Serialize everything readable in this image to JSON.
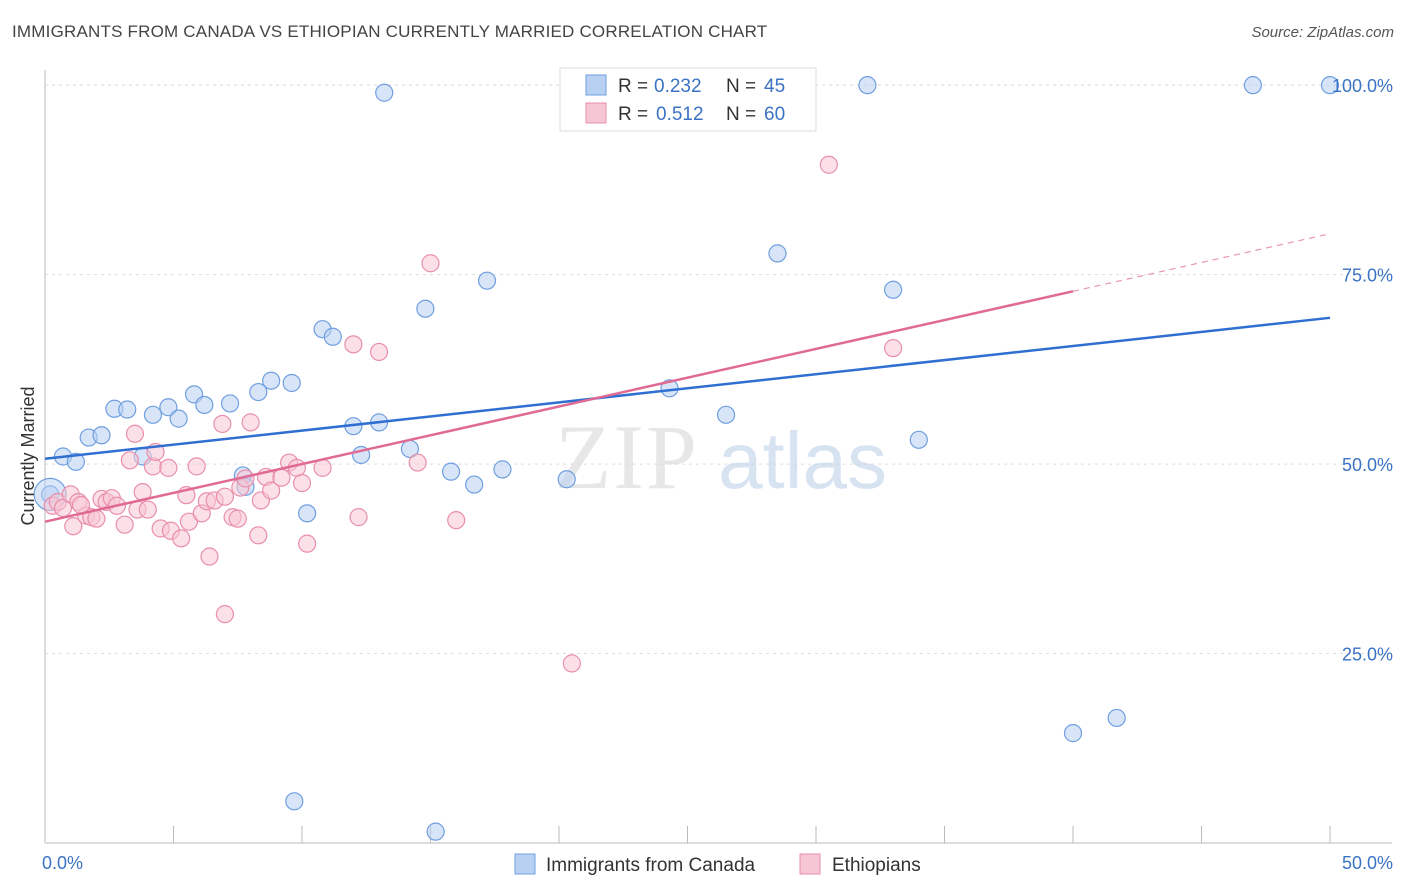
{
  "title": "IMMIGRANTS FROM CANADA VS ETHIOPIAN CURRENTLY MARRIED CORRELATION CHART",
  "source": "Source: ZipAtlas.com",
  "watermark": {
    "zip": "ZIP",
    "atlas": "atlas"
  },
  "colors": {
    "blue_fill": "#b8d0f2",
    "blue_stroke": "#6f9fe0",
    "blue_line": "#2f6fd1",
    "pink_fill": "#f7c6d4",
    "pink_stroke": "#e98fab",
    "pink_line": "#e06a94",
    "tick": "#3b73c4",
    "grid": "#dddddd"
  },
  "legend": {
    "rows": [
      {
        "r_label": "R = ",
        "r_value": "0.232",
        "n_label": "N = ",
        "n_value": "45"
      },
      {
        "r_label": "R = ",
        "r_value": "0.512",
        "n_label": "N = ",
        "n_value": "60"
      }
    ]
  },
  "chart_data": {
    "type": "scatter",
    "ylabel": "Currently Married",
    "xlim": [
      0,
      50
    ],
    "ylim": [
      0,
      102
    ],
    "x_tick_labels": [
      "0.0%",
      "50.0%"
    ],
    "y_tick_labels": [
      "25.0%",
      "50.0%",
      "75.0%",
      "100.0%"
    ],
    "y_ticks": [
      25,
      50,
      75,
      100
    ],
    "grid": true,
    "series": [
      {
        "name": "Immigrants from Canada",
        "trend": {
          "x0": 0,
          "y0": 50.7,
          "x1": 50,
          "y1": 69.3
        },
        "points": [
          [
            0.2,
            46.0
          ],
          [
            0.7,
            51.0
          ],
          [
            1.2,
            50.3
          ],
          [
            1.7,
            53.5
          ],
          [
            2.2,
            53.8
          ],
          [
            2.7,
            57.3
          ],
          [
            3.2,
            57.2
          ],
          [
            3.8,
            51.0
          ],
          [
            4.2,
            56.5
          ],
          [
            4.8,
            57.5
          ],
          [
            5.2,
            56.0
          ],
          [
            5.8,
            59.2
          ],
          [
            6.2,
            57.8
          ],
          [
            7.2,
            58.0
          ],
          [
            7.7,
            48.5
          ],
          [
            7.8,
            47.0
          ],
          [
            8.3,
            59.5
          ],
          [
            8.8,
            61.0
          ],
          [
            9.6,
            60.7
          ],
          [
            9.7,
            5.5
          ],
          [
            10.2,
            43.5
          ],
          [
            10.8,
            67.8
          ],
          [
            11.2,
            66.8
          ],
          [
            12.0,
            55.0
          ],
          [
            12.3,
            51.2
          ],
          [
            13.0,
            55.5
          ],
          [
            13.2,
            99.0
          ],
          [
            14.2,
            52.0
          ],
          [
            14.8,
            70.5
          ],
          [
            15.2,
            1.5
          ],
          [
            15.8,
            49.0
          ],
          [
            16.7,
            47.3
          ],
          [
            17.2,
            74.2
          ],
          [
            17.8,
            49.3
          ],
          [
            20.3,
            48.0
          ],
          [
            24.3,
            60.0
          ],
          [
            26.5,
            56.5
          ],
          [
            28.5,
            77.8
          ],
          [
            32.0,
            100.0
          ],
          [
            33.0,
            73.0
          ],
          [
            34.0,
            53.2
          ],
          [
            40.0,
            14.5
          ],
          [
            41.7,
            16.5
          ],
          [
            47.0,
            100.0
          ],
          [
            50.0,
            100.0
          ]
        ]
      },
      {
        "name": "Ethiopians",
        "trend": {
          "x0": 0,
          "y0": 42.4,
          "x1": 40.0,
          "y1": 72.8
        },
        "trend_dashed": {
          "x0": 40.0,
          "y0": 72.8,
          "x1": 50.0,
          "y1": 80.4
        },
        "points": [
          [
            0.3,
            44.5
          ],
          [
            0.5,
            45.0
          ],
          [
            0.7,
            44.2
          ],
          [
            1.0,
            46.0
          ],
          [
            1.1,
            41.8
          ],
          [
            1.3,
            45.0
          ],
          [
            1.6,
            43.2
          ],
          [
            1.8,
            43.0
          ],
          [
            2.2,
            45.4
          ],
          [
            2.4,
            45.0
          ],
          [
            2.6,
            45.5
          ],
          [
            2.8,
            44.5
          ],
          [
            3.1,
            42.0
          ],
          [
            3.3,
            50.5
          ],
          [
            3.6,
            44.0
          ],
          [
            3.8,
            46.3
          ],
          [
            4.0,
            44.0
          ],
          [
            4.2,
            49.7
          ],
          [
            4.3,
            51.6
          ],
          [
            4.5,
            41.5
          ],
          [
            4.8,
            49.5
          ],
          [
            4.9,
            41.2
          ],
          [
            5.3,
            40.2
          ],
          [
            5.5,
            45.9
          ],
          [
            5.6,
            42.4
          ],
          [
            5.9,
            49.7
          ],
          [
            6.1,
            43.5
          ],
          [
            6.3,
            45.1
          ],
          [
            6.4,
            37.8
          ],
          [
            6.6,
            45.2
          ],
          [
            6.9,
            55.3
          ],
          [
            7.0,
            45.7
          ],
          [
            7.3,
            43.0
          ],
          [
            7.5,
            42.8
          ],
          [
            7.6,
            46.9
          ],
          [
            7.8,
            48.1
          ],
          [
            8.0,
            55.5
          ],
          [
            8.3,
            40.6
          ],
          [
            8.4,
            45.2
          ],
          [
            8.6,
            48.3
          ],
          [
            7.0,
            30.2
          ],
          [
            8.8,
            46.5
          ],
          [
            9.2,
            48.2
          ],
          [
            9.5,
            50.2
          ],
          [
            9.8,
            49.5
          ],
          [
            10.0,
            47.5
          ],
          [
            10.2,
            39.5
          ],
          [
            10.8,
            49.5
          ],
          [
            12.0,
            65.8
          ],
          [
            12.2,
            43.0
          ],
          [
            13.0,
            64.8
          ],
          [
            14.5,
            50.2
          ],
          [
            15.0,
            76.5
          ],
          [
            16.0,
            42.6
          ],
          [
            20.5,
            23.7
          ],
          [
            30.5,
            89.5
          ],
          [
            33.0,
            65.3
          ],
          [
            3.5,
            54.0
          ],
          [
            2.0,
            42.8
          ],
          [
            1.4,
            44.6
          ]
        ]
      }
    ]
  }
}
